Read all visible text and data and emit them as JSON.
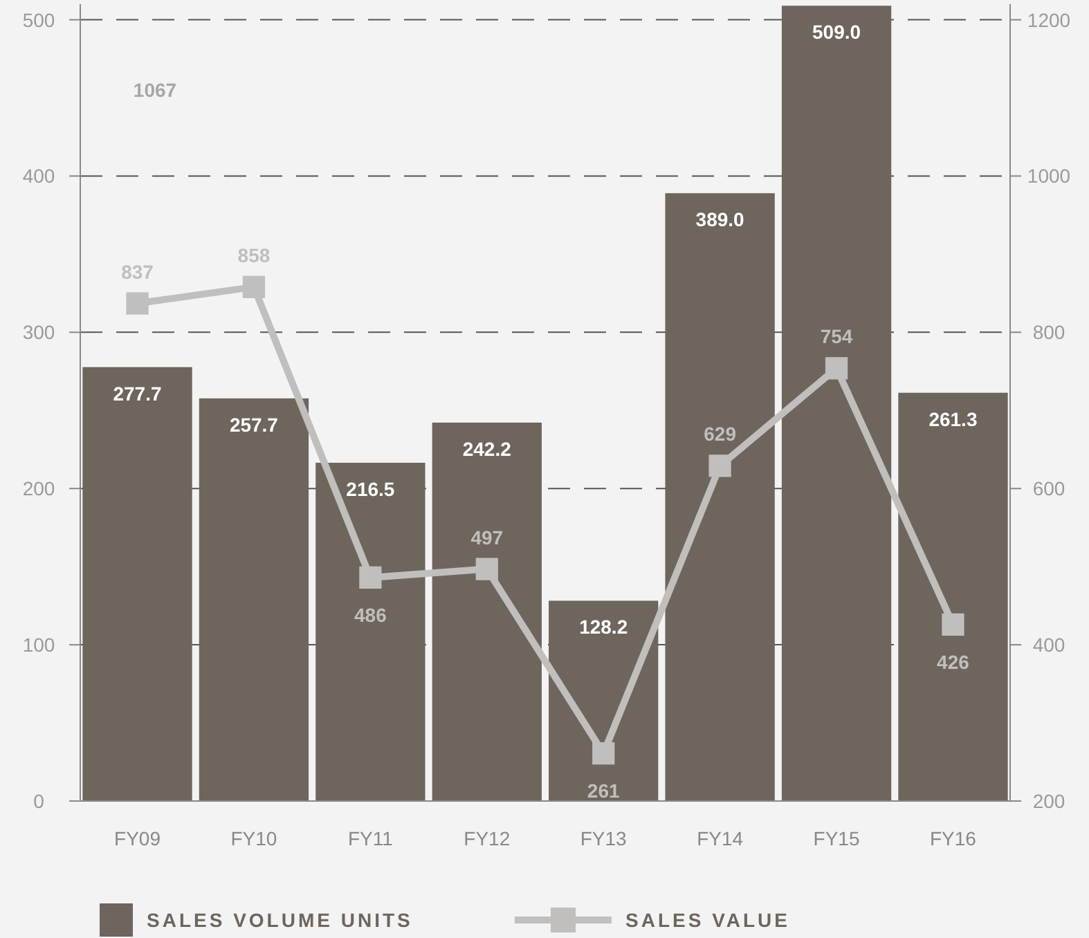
{
  "chart_data": {
    "type": "bar",
    "categories": [
      "FY09",
      "FY10",
      "FY11",
      "FY12",
      "FY13",
      "FY14",
      "FY15",
      "FY16"
    ],
    "series": [
      {
        "name": "SALES VOLUME UNITS",
        "color": "#6e655d",
        "values": [
          277.7,
          257.7,
          216.5,
          242.2,
          128.2,
          389.0,
          509.0,
          261.3
        ],
        "value_labels": [
          "277.7",
          "257.7",
          "216.5",
          "242.2",
          "128.2",
          "389.0",
          "509.0",
          "261.3"
        ]
      },
      {
        "name": "SALES VALUE",
        "type": "line",
        "axis": "y2",
        "color": "#c0bfbd",
        "values": [
          837,
          858,
          486,
          497,
          261,
          629,
          754,
          426
        ],
        "data_labels": true,
        "marker": "square"
      }
    ],
    "ylim": [
      0,
      510
    ],
    "yticks": [
      0,
      100,
      200,
      300,
      400,
      500
    ],
    "y2lim": [
      200,
      1220
    ],
    "y2ticks": [
      200,
      400,
      600,
      800,
      1000,
      1200
    ],
    "grid": "y",
    "legend": "bottom",
    "annotations": [
      "1067"
    ]
  }
}
